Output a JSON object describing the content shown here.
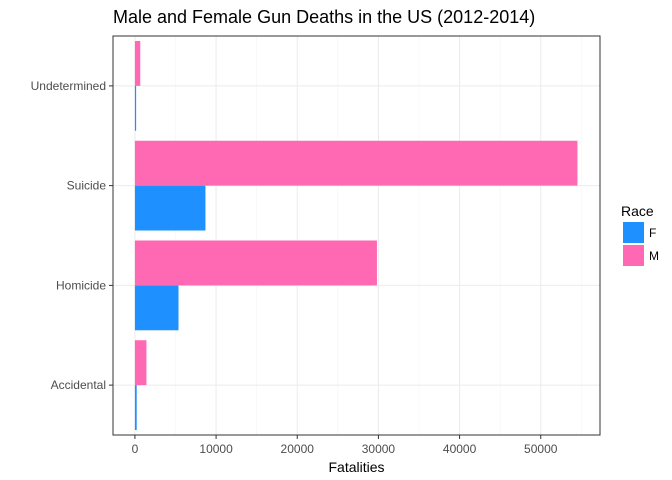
{
  "chart_data": {
    "type": "bar",
    "orientation": "horizontal",
    "title": "Male and Female Gun Deaths in the US (2012-2014)",
    "xlabel": "Fatalities",
    "ylabel": "",
    "categories": [
      "Accidental",
      "Homicide",
      "Suicide",
      "Undetermined"
    ],
    "series": [
      {
        "name": "F",
        "color": "#1e90ff",
        "values": [
          220,
          5370,
          8690,
          150
        ]
      },
      {
        "name": "M",
        "color": "#ff69b4",
        "values": [
          1420,
          29820,
          54520,
          660
        ]
      }
    ],
    "xlim": [
      -2700,
      57300
    ],
    "xticks": [
      0,
      10000,
      20000,
      30000,
      40000,
      50000
    ],
    "xtick_labels": [
      "0",
      "10000",
      "20000",
      "30000",
      "40000",
      "50000"
    ],
    "grid": true,
    "legend": {
      "title": "Race",
      "position": "right"
    }
  }
}
